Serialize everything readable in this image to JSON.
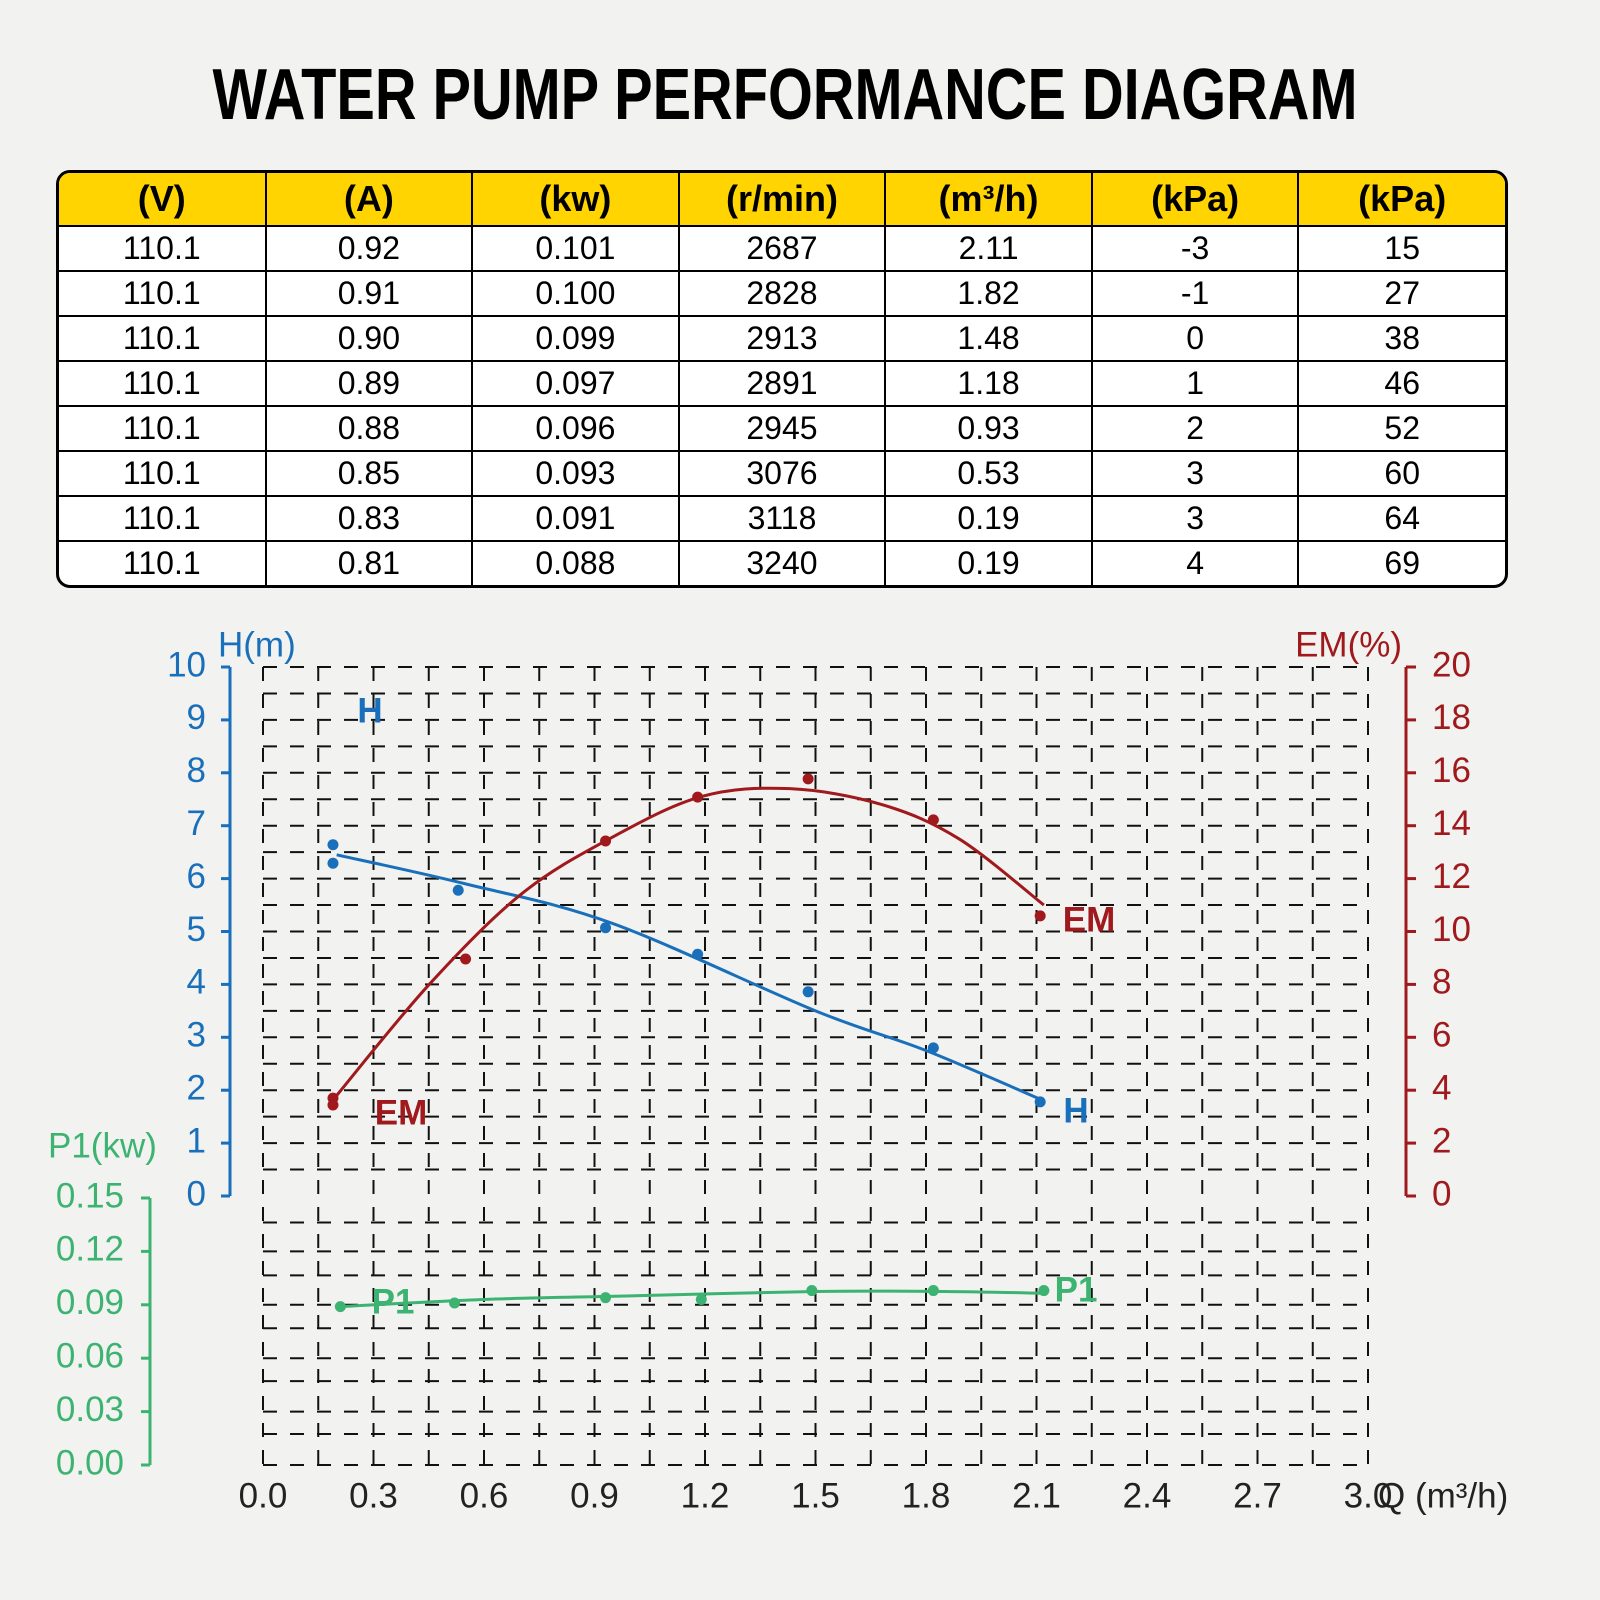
{
  "title": "WATER PUMP PERFORMANCE DIAGRAM",
  "table": {
    "header": [
      "(V)",
      "(A)",
      "(kw)",
      "(r/min)",
      "(m³/h)",
      "(kPa)",
      "(kPa)"
    ],
    "rows": [
      [
        "110.1",
        "0.92",
        "0.101",
        "2687",
        "2.11",
        "-3",
        "15"
      ],
      [
        "110.1",
        "0.91",
        "0.100",
        "2828",
        "1.82",
        "-1",
        "27"
      ],
      [
        "110.1",
        "0.90",
        "0.099",
        "2913",
        "1.48",
        "0",
        "38"
      ],
      [
        "110.1",
        "0.89",
        "0.097",
        "2891",
        "1.18",
        "1",
        "46"
      ],
      [
        "110.1",
        "0.88",
        "0.096",
        "2945",
        "0.93",
        "2",
        "52"
      ],
      [
        "110.1",
        "0.85",
        "0.093",
        "3076",
        "0.53",
        "3",
        "60"
      ],
      [
        "110.1",
        "0.83",
        "0.091",
        "3118",
        "0.19",
        "3",
        "64"
      ],
      [
        "110.1",
        "0.81",
        "0.088",
        "3240",
        "0.19",
        "4",
        "69"
      ]
    ]
  },
  "chart_data": {
    "type": "scatter",
    "x_label": "Q (m³/h)",
    "y_label": "H(m)",
    "y2_label": "EM(%)",
    "y3_label": "P1(kw)",
    "xlim": [
      0,
      3
    ],
    "xticks": [
      {
        "value": 0,
        "label": "0.0"
      },
      0.3,
      0.6,
      0.9,
      1.2,
      1.5,
      1.8,
      2.1,
      2.4,
      2.7,
      {
        "value": 3,
        "label": "3.0"
      }
    ],
    "ylim": [
      0,
      10
    ],
    "yticks": [
      0,
      1,
      2,
      3,
      4,
      5,
      6,
      7,
      8,
      9,
      10
    ],
    "y2lim": [
      0,
      20
    ],
    "y2ticks": [
      0,
      2,
      4,
      6,
      8,
      10,
      12,
      14,
      16,
      18,
      20
    ],
    "y3lim": [
      0,
      0.15
    ],
    "y3ticks": [
      {
        "value": 0,
        "label": "0.00"
      },
      0.03,
      0.06,
      0.09,
      0.12,
      0.15
    ],
    "grid": true,
    "series": [
      {
        "name": "H",
        "color": "#1a6fba",
        "axis": "y",
        "labels": [
          "H",
          "H"
        ],
        "x": [
          0.19,
          0.19,
          0.53,
          0.93,
          1.18,
          1.48,
          1.82,
          2.11
        ],
        "values": [
          6.64,
          6.29,
          5.78,
          5.07,
          4.57,
          3.86,
          2.8,
          1.78
        ],
        "fit_x": [
          0.2,
          0.55,
          0.95,
          1.5,
          1.8,
          2.12
        ],
        "fit_values": [
          6.45,
          5.9,
          5.15,
          3.5,
          2.75,
          1.8
        ]
      },
      {
        "name": "EM",
        "color": "#a0191c",
        "axis": "y2",
        "labels": [
          "EM",
          "EM"
        ],
        "x": [
          0.19,
          0.19,
          0.55,
          0.93,
          1.18,
          1.48,
          1.82,
          2.11
        ],
        "values": [
          3.7,
          3.44,
          8.96,
          13.42,
          15.08,
          15.77,
          14.22,
          10.59
        ],
        "fit_x": [
          0.2,
          0.45,
          0.7,
          0.94,
          1.19,
          1.43,
          1.68,
          1.89,
          2.12
        ],
        "fit_values": [
          3.8,
          7.98,
          11.4,
          13.5,
          15.1,
          15.4,
          14.8,
          13.5,
          11.0
        ]
      },
      {
        "name": "P1",
        "color": "#3cb371",
        "axis": "y3",
        "labels": [
          "P1",
          "P1"
        ],
        "x": [
          0.21,
          0.52,
          0.93,
          1.19,
          1.49,
          1.82,
          2.12
        ],
        "values": [
          0.089,
          0.091,
          0.094,
          0.093,
          0.098,
          0.098,
          0.098
        ],
        "fit_x": [
          0.21,
          0.6,
          1.0,
          1.5,
          1.85,
          2.12
        ],
        "fit_values": [
          0.089,
          0.093,
          0.095,
          0.0975,
          0.0975,
          0.0965
        ]
      }
    ]
  }
}
